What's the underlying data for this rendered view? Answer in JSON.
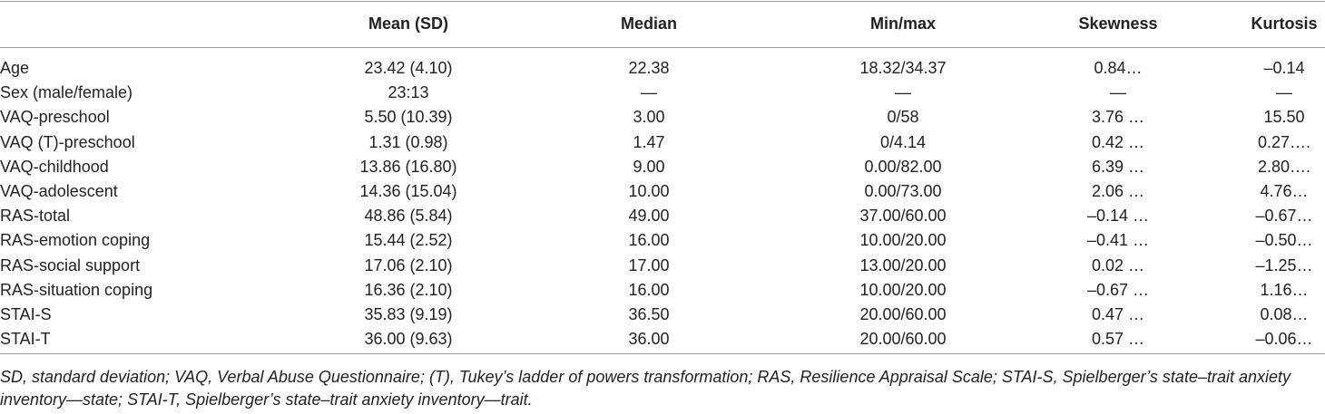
{
  "table": {
    "header": [
      "",
      "Mean (SD)",
      "Median",
      "Min/max",
      "Skewness",
      "Kurtosis"
    ],
    "rows": [
      [
        "Age",
        "23.42 (4.10)",
        "22.38",
        "18.32/34.37",
        "0.84…",
        "–0.14"
      ],
      [
        "Sex (male/female)",
        "23:13",
        "—",
        "—",
        "—",
        "—"
      ],
      [
        "VAQ-preschool",
        "5.50 (10.39)",
        "3.00",
        "0/58",
        "3.76 …",
        "15.50"
      ],
      [
        "VAQ (T)-preschool",
        "1.31 (0.98)",
        "1.47",
        "0/4.14",
        "0.42 …",
        "0.27…."
      ],
      [
        "VAQ-childhood",
        "13.86 (16.80)",
        "9.00",
        "0.00/82.00",
        "6.39 …",
        "2.80…."
      ],
      [
        "VAQ-adolescent",
        "14.36 (15.04)",
        "10.00",
        "0.00/73.00",
        "2.06 …",
        "4.76…"
      ],
      [
        "RAS-total",
        "48.86 (5.84)",
        "49.00",
        "37.00/60.00",
        "–0.14 …",
        "–0.67…"
      ],
      [
        "RAS-emotion coping",
        "15.44 (2.52)",
        "16.00",
        "10.00/20.00",
        "–0.41 …",
        "–0.50…"
      ],
      [
        "RAS-social support",
        "17.06 (2.10)",
        "17.00",
        "13.00/20.00",
        "0.02 …",
        "–1.25…"
      ],
      [
        "RAS-situation coping",
        "16.36 (2.10)",
        "16.00",
        "10.00/20.00",
        "–0.67 …",
        "1.16…"
      ],
      [
        "STAI-S",
        "35.83 (9.19)",
        "36.50",
        "20.00/60.00",
        "0.47 …",
        "0.08…"
      ],
      [
        "STAI-T",
        "36.00 (9.63)",
        "36.00",
        "20.00/60.00",
        "0.57 …",
        "–0.06…"
      ]
    ]
  },
  "footnote": "SD, standard deviation; VAQ, Verbal Abuse Questionnaire; (T), Tukey’s ladder of powers transformation; RAS, Resilience Appraisal Scale; STAI-S, Spielberger’s state–trait anxiety inventory—state; STAI-T, Spielberger’s state–trait anxiety inventory—trait."
}
